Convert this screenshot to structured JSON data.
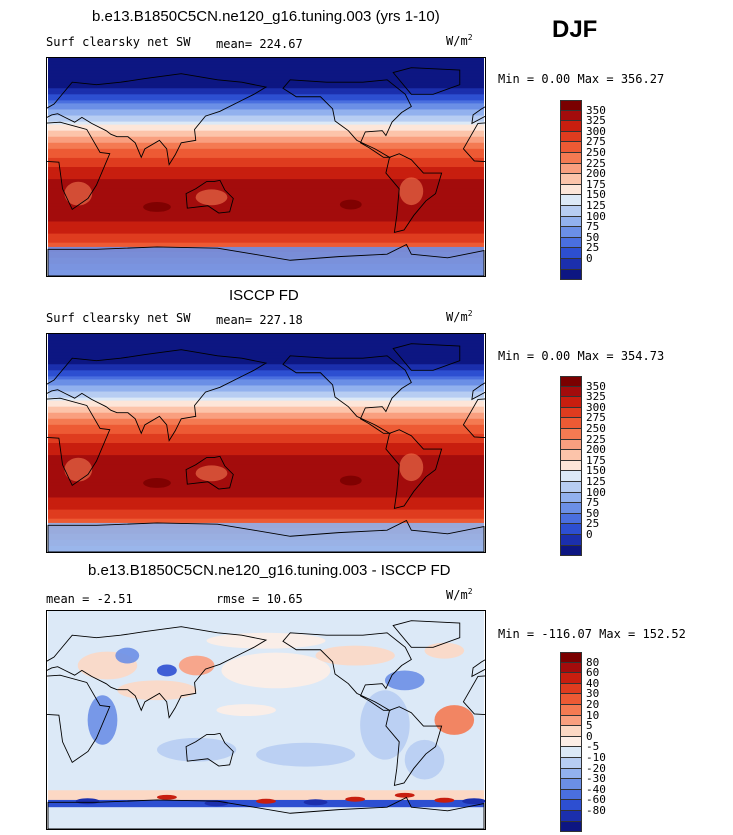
{
  "season": "DJF",
  "units_base": "W/m",
  "units_exp": "2",
  "panels": [
    {
      "title": "b.e13.B1850C5CN.ne120_g16.tuning.003 (yrs 1-10)",
      "subtitle": "Surf clearsky net SW",
      "mean": "mean= 224.67",
      "minmax": "Min =   0.00 Max = 356.27",
      "colorbar": {
        "labels": [
          "350",
          "325",
          "300",
          "275",
          "250",
          "225",
          "200",
          "175",
          "150",
          "125",
          "100",
          "75",
          "50",
          "25",
          "0"
        ],
        "colors": [
          "#7a0000",
          "#a30c0c",
          "#c81e0f",
          "#df3c1f",
          "#ed5a34",
          "#f47a52",
          "#f99f7f",
          "#fcc4aa",
          "#fde6d9",
          "#dce9f7",
          "#b7cdf2",
          "#92b1ee",
          "#6b8fe6",
          "#4a6fdf",
          "#2d4fd1",
          "#1b2fad",
          "#0d1682"
        ]
      }
    },
    {
      "title": "ISCCP FD",
      "subtitle": "Surf clearsky net SW",
      "mean": "mean= 227.18",
      "minmax": "Min =   0.00 Max = 354.73",
      "colorbar": {
        "labels": [
          "350",
          "325",
          "300",
          "275",
          "250",
          "225",
          "200",
          "175",
          "150",
          "125",
          "100",
          "75",
          "50",
          "25",
          "0"
        ],
        "colors": [
          "#7a0000",
          "#a30c0c",
          "#c81e0f",
          "#df3c1f",
          "#ed5a34",
          "#f47a52",
          "#f99f7f",
          "#fcc4aa",
          "#fde6d9",
          "#dce9f7",
          "#b7cdf2",
          "#92b1ee",
          "#6b8fe6",
          "#4a6fdf",
          "#2d4fd1",
          "#1b2fad",
          "#0d1682"
        ]
      }
    },
    {
      "title": "b.e13.B1850C5CN.ne120_g16.tuning.003 - ISCCP FD",
      "subtitle": "mean =   -2.51",
      "rmse": "rmse =   10.65",
      "minmax": "Min = -116.07 Max = 152.52",
      "colorbar": {
        "labels": [
          "80",
          "60",
          "40",
          "30",
          "20",
          "10",
          "5",
          "0",
          "-5",
          "-10",
          "-20",
          "-30",
          "-40",
          "-60",
          "-80"
        ],
        "colors": [
          "#7a0000",
          "#a30c0c",
          "#c81e0f",
          "#df3c1f",
          "#ed5a34",
          "#f47a52",
          "#f99f7f",
          "#fcd8c4",
          "#fdeee6",
          "#dce9f7",
          "#b7cdf2",
          "#92b1ee",
          "#6b8fe6",
          "#4a6fdf",
          "#2d4fd1",
          "#1b2fad",
          "#0d1682"
        ]
      }
    }
  ]
}
